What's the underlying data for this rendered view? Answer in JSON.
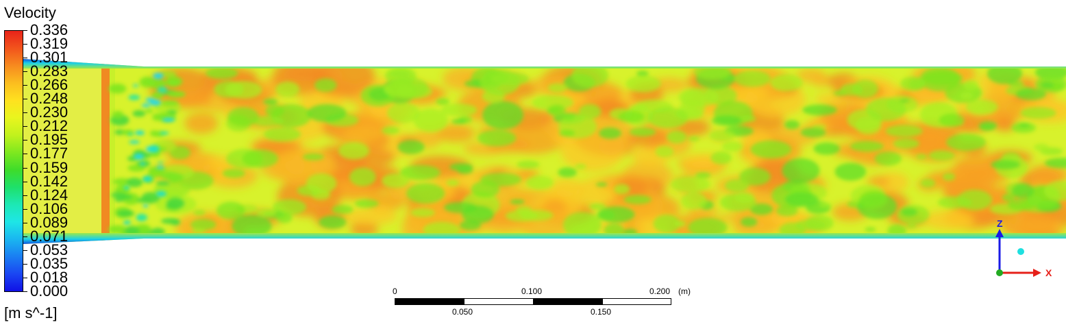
{
  "legend": {
    "title": "Velocity",
    "units": "[m s^-1]",
    "ticks": [
      "0.336",
      "0.319",
      "0.301",
      "0.283",
      "0.266",
      "0.248",
      "0.230",
      "0.212",
      "0.195",
      "0.177",
      "0.159",
      "0.142",
      "0.124",
      "0.106",
      "0.089",
      "0.071",
      "0.053",
      "0.035",
      "0.018",
      "0.000"
    ],
    "colors": [
      "#e8231a",
      "#f2541c",
      "#f78a1f",
      "#fbbd1f",
      "#ffe11f",
      "#e9f51e",
      "#c2f21d",
      "#7fe81f",
      "#3fdc2a",
      "#1ee06a",
      "#1de8b4",
      "#1ee6e6",
      "#1ab6f0",
      "#1a7ef2",
      "#1a46f2",
      "#1010e6"
    ]
  },
  "scale_bar": {
    "labels_top": [
      "0",
      "0.100",
      "0.200"
    ],
    "labels_bottom": [
      "0.050",
      "0.150"
    ],
    "unit": "(m)"
  },
  "axes": {
    "x_label": "X",
    "z_label": "Z",
    "x_color": "#e6201a",
    "z_color": "#1a1ae6",
    "origin_color": "#22aa22"
  },
  "field": {
    "base_color": "#d8f22c",
    "inlet_color": "#e6f048",
    "wall_color": "#1e5ee8"
  }
}
